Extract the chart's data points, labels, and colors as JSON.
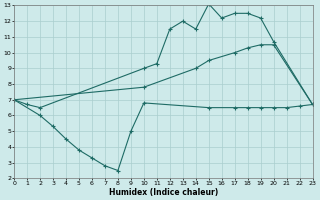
{
  "xlabel": "Humidex (Indice chaleur)",
  "xlim": [
    0,
    23
  ],
  "ylim": [
    2,
    13
  ],
  "xticks": [
    0,
    1,
    2,
    3,
    4,
    5,
    6,
    7,
    8,
    9,
    10,
    11,
    12,
    13,
    14,
    15,
    16,
    17,
    18,
    19,
    20,
    21,
    22,
    23
  ],
  "yticks": [
    2,
    3,
    4,
    5,
    6,
    7,
    8,
    9,
    10,
    11,
    12,
    13
  ],
  "background_color": "#ceeaea",
  "grid_color": "#aacece",
  "line_color": "#1e6b65",
  "line1_x": [
    0,
    1,
    2,
    10,
    11,
    12,
    13,
    14,
    15,
    16,
    17,
    18,
    19,
    20,
    23
  ],
  "line1_y": [
    7,
    6.7,
    6.5,
    9.0,
    9.3,
    11.5,
    12.0,
    11.5,
    13.1,
    12.2,
    12.5,
    12.5,
    12.2,
    10.7,
    6.7
  ],
  "line2_x": [
    0,
    2,
    3,
    4,
    5,
    6,
    7,
    8,
    9,
    10,
    15,
    17,
    18,
    19,
    20,
    21,
    22,
    23
  ],
  "line2_y": [
    7,
    6.0,
    5.3,
    4.5,
    3.8,
    3.3,
    2.8,
    2.5,
    5.0,
    6.8,
    6.5,
    6.5,
    6.5,
    6.5,
    6.5,
    6.5,
    6.6,
    6.7
  ],
  "line3_x": [
    0,
    10,
    14,
    15,
    17,
    18,
    19,
    20,
    23
  ],
  "line3_y": [
    7,
    7.8,
    9.0,
    9.5,
    10.0,
    10.3,
    10.5,
    10.5,
    6.7
  ],
  "marker": "+"
}
